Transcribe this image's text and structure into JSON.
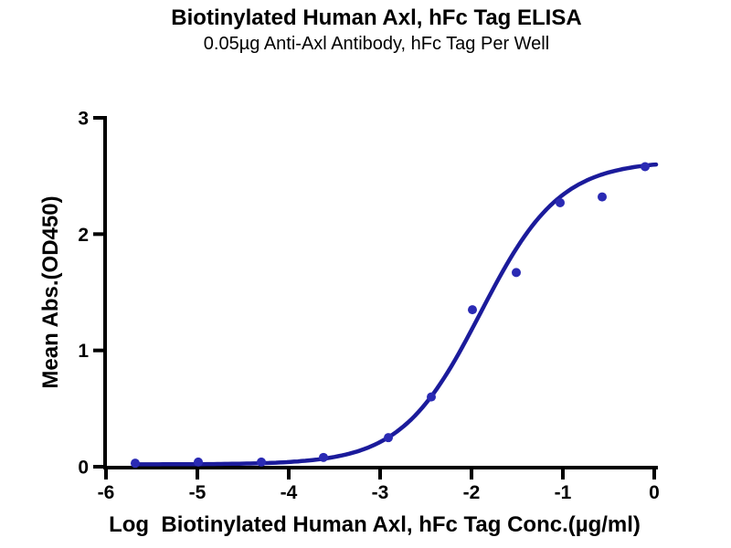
{
  "figure": {
    "title": "Biotinylated Human Axl, hFc Tag ELISA",
    "subtitle": "0.05µg Anti-Axl Antibody, hFc Tag Per Well"
  },
  "chart_data": {
    "type": "scatter",
    "title": "Biotinylated Human Axl, hFc Tag ELISA",
    "subtitle": "0.05µg Anti-Axl Antibody, hFc Tag Per Well",
    "xlabel": "Log  Biotinylated Human Axl, hFc Tag Conc.(µg/ml)",
    "ylabel": "Mean Abs.(OD450)",
    "xlim": [
      -6.15,
      0.2
    ],
    "ylim": [
      0,
      3
    ],
    "x_ticks": [
      -6,
      -5,
      -4,
      -3,
      -2,
      -1,
      0
    ],
    "y_ticks": [
      0,
      1,
      2,
      3
    ],
    "grid": false,
    "legend": false,
    "points": {
      "log_conc": [
        -5.68,
        -4.99,
        -4.3,
        -3.62,
        -2.91,
        -2.44,
        -1.99,
        -1.51,
        -1.03,
        -0.57,
        -0.1
      ],
      "od450": [
        0.03,
        0.04,
        0.04,
        0.08,
        0.25,
        0.6,
        1.35,
        1.67,
        2.27,
        2.32,
        2.58
      ]
    },
    "fit_curve": {
      "model": "4PL",
      "bottom": 0.02,
      "top": 2.63,
      "log_ec50": -1.9,
      "hill": 1.0,
      "x_start": -5.7,
      "x_end": 0.02
    },
    "colors": {
      "points": "#2A2AB4",
      "curve": "#1B1B9B",
      "axis": "#000000"
    }
  }
}
